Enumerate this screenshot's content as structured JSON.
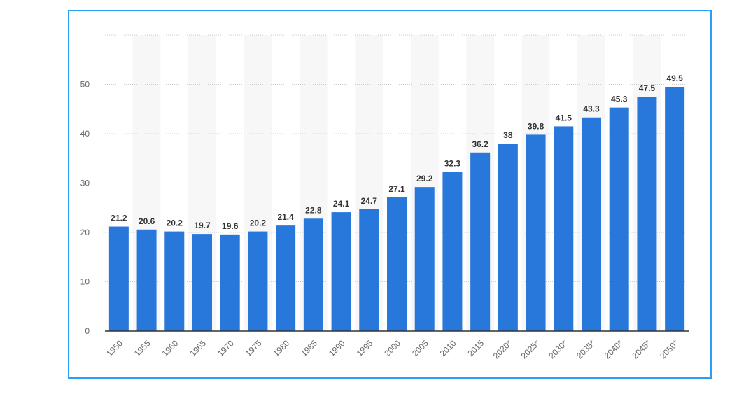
{
  "chart_data": {
    "type": "bar",
    "title": "",
    "xlabel": "",
    "ylabel": "",
    "ylim": [
      0,
      60
    ],
    "yticks": [
      0,
      10,
      20,
      30,
      40,
      50
    ],
    "grid": true,
    "colors": {
      "bar": "#2878dc",
      "frame": "#2a9df4",
      "band": "#f7f7f7",
      "grid": "#cccccc",
      "axis": "#333333",
      "tick_text": "#666666",
      "label_text": "#333333"
    },
    "categories": [
      "1950",
      "1955",
      "1960",
      "1965",
      "1970",
      "1975",
      "1980",
      "1985",
      "1990",
      "1995",
      "2000",
      "2005",
      "2010",
      "2015",
      "2020*",
      "2025*",
      "2030*",
      "2035*",
      "2040*",
      "2045*",
      "2050*"
    ],
    "values": [
      21.2,
      20.6,
      20.2,
      19.7,
      19.6,
      20.2,
      21.4,
      22.8,
      24.1,
      24.7,
      27.1,
      29.2,
      32.3,
      36.2,
      38,
      39.8,
      41.5,
      43.3,
      45.3,
      47.5,
      49.5
    ],
    "value_labels": [
      "21.2",
      "20.6",
      "20.2",
      "19.7",
      "19.6",
      "20.2",
      "21.4",
      "22.8",
      "24.1",
      "24.7",
      "27.1",
      "29.2",
      "32.3",
      "36.2",
      "38",
      "39.8",
      "41.5",
      "43.3",
      "45.3",
      "47.5",
      "49.5"
    ]
  }
}
